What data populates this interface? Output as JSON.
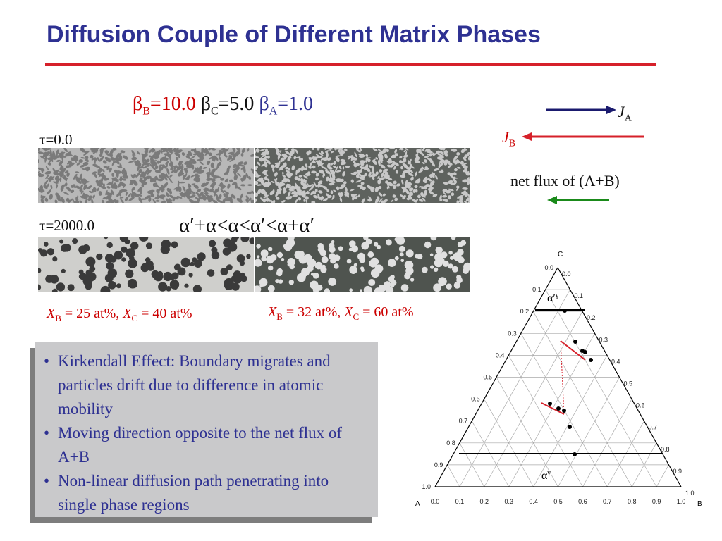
{
  "title": "Diffusion Couple of Different Matrix Phases",
  "betas": {
    "b_sym": "β",
    "b_sub": "B",
    "b_val": "=10.0",
    "c_sym": "β",
    "c_sub": "C",
    "c_val": "=5.0",
    "a_sym": "β",
    "a_sub": "A",
    "a_val": "=1.0"
  },
  "tau_initial": "τ=0.0",
  "tau_final": "τ=2000.0",
  "phase_order": "α′+α<α<α′<α+α′",
  "composition_left": {
    "x_b": "X",
    "x_b_sub": "B",
    "x_b_val": " = 25 at%, ",
    "x_c": "X",
    "x_c_sub": "C",
    "x_c_val": " = 40 at%"
  },
  "composition_right": {
    "x_b": "X",
    "x_b_sub": "B",
    "x_b_val": " = 32 at%, ",
    "x_c": "X",
    "x_c_sub": "C",
    "x_c_val": " = 60 at%"
  },
  "flux": {
    "ja": "J",
    "ja_sub": "A",
    "jb": "J",
    "jb_sub": "B",
    "net_label": "net flux of (A+B)",
    "colors": {
      "ja": "#1a1a6e",
      "jb": "#d6202a",
      "net": "#1a8a1a"
    }
  },
  "bullets": [
    "Kirkendall Effect: Boundary migrates and particles drift due to difference in atomic mobility",
    "Moving direction opposite to the net flux of A+B",
    "Non-linear diffusion path penetrating into single phase regions"
  ],
  "bullet_symbol": "•",
  "ternary": {
    "vertex_top": "C",
    "vertex_left": "A",
    "vertex_right": "B",
    "bottom_ticks": [
      "0.0",
      "0.1",
      "0.2",
      "0.3",
      "0.4",
      "0.5",
      "0.6",
      "0.7",
      "0.8",
      "0.9",
      "1.0"
    ],
    "left_ticks": [
      "0.0",
      "0.1",
      "0.2",
      "0.3",
      "0.4",
      "0.5",
      "0.6",
      "0.7",
      "0.8",
      "0.9",
      "1.0"
    ],
    "right_ticks": [
      "1.0",
      "0.9",
      "0.8",
      "0.7",
      "0.6",
      "0.5",
      "0.4",
      "0.3",
      "0.2",
      "0.1",
      "0.0"
    ],
    "phase_top": "α′",
    "phase_top_sup": "γ",
    "phase_bottom": "α",
    "phase_bottom_sup": "γ"
  },
  "accent_colors": {
    "title": "#2e3192",
    "rule": "#d6202a",
    "composition": "#cc0000",
    "bullet_box": "#c9c9cb"
  }
}
